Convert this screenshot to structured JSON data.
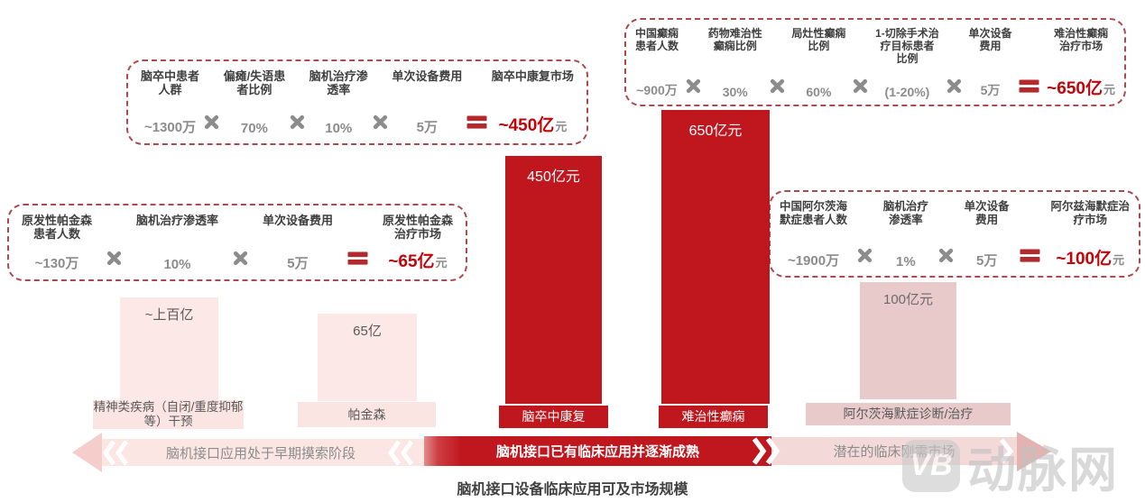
{
  "title": "脑机接口设备临床应用可及市场规模",
  "watermark": {
    "logo_text": "VB",
    "brand": "动脉网"
  },
  "stage_arrows": {
    "left": "脑机接口应用处于早期摸索阶段",
    "middle": "脑机接口已有临床应用并逐渐成熟",
    "right": "潜在的临床刚需市场"
  },
  "formula_boxes": [
    {
      "market": "脑卒中康复",
      "terms": [
        {
          "label": "脑卒中患者\n人群",
          "value": "~1300万"
        },
        {
          "label": "偏瘫/失语患\n者比例",
          "value": "70%"
        },
        {
          "label": "脑机治疗渗\n透率",
          "value": "10%"
        },
        {
          "label": "单次设备费用",
          "value": "5万"
        }
      ],
      "result": {
        "label": "脑卒中康复市场",
        "value": "~450亿",
        "unit": "元"
      }
    },
    {
      "market": "难治性癫痫",
      "terms": [
        {
          "label": "中国癫痫\n患者人数",
          "value": "~900万"
        },
        {
          "label": "药物难治性\n癫痫比例",
          "value": "30%"
        },
        {
          "label": "局灶性癫痫\n比例",
          "value": "60%"
        },
        {
          "label": "1-切除手术治\n疗目标患者\n比例",
          "value": "(1-20%)"
        },
        {
          "label": "单次设备\n费用",
          "value": "5万"
        }
      ],
      "result": {
        "label": "难治性癫痫\n治疗市场",
        "value": "~650亿",
        "unit": "元"
      }
    },
    {
      "market": "原发性帕金森",
      "terms": [
        {
          "label": "原发性帕金森\n患者人数",
          "value": "~130万"
        },
        {
          "label": "脑机治疗渗透率",
          "value": "10%"
        },
        {
          "label": "单次设备费用",
          "value": "5万"
        }
      ],
      "result": {
        "label": "原发性帕金森\n治疗市场",
        "value": "~65亿",
        "unit": "元"
      }
    },
    {
      "market": "阿尔兹海默症",
      "terms": [
        {
          "label": "中国阿尔茨海\n默症患者人数",
          "value": "~1900万"
        },
        {
          "label": "脑机治疗\n渗透率",
          "value": "1%"
        },
        {
          "label": "单次设备\n费用",
          "value": "5万"
        }
      ],
      "result": {
        "label": "阿尔兹海默症治\n疗市场",
        "value": "~100亿",
        "unit": "元"
      }
    }
  ],
  "chart_data": {
    "type": "bar",
    "title": "脑机接口设备临床应用可及市场规模",
    "unit": "亿元",
    "categories": [
      "精神类疾病（自闭/重度抑郁等）干预",
      "帕金森",
      "脑卒中康复",
      "难治性癫痫",
      "阿尔茨海默症诊断/治疗"
    ],
    "values": [
      100,
      65,
      450,
      650,
      100
    ],
    "value_labels": [
      "~上百亿",
      "65亿",
      "450亿元",
      "650亿元",
      "100亿元"
    ],
    "bar_styles": [
      "light-pink",
      "light-pink",
      "red",
      "red",
      "dusty-pink"
    ],
    "stages": [
      "脑机接口应用处于早期摸索阶段",
      "脑机接口已有临床应用并逐渐成熟",
      "潜在的临床刚需市场"
    ],
    "legend": "none",
    "axes": "none"
  },
  "colors": {
    "primary_red": "#c0161d",
    "result_red": "#c40309",
    "dashed_border": "#ab4a4e",
    "light_pink_bar": "#fce9e7",
    "pink_band": "#fbe5e3",
    "dusty_pink_bar": "#e8caca",
    "value_grey": "#8c8c8c",
    "label_dark": "#3f3f3f"
  }
}
